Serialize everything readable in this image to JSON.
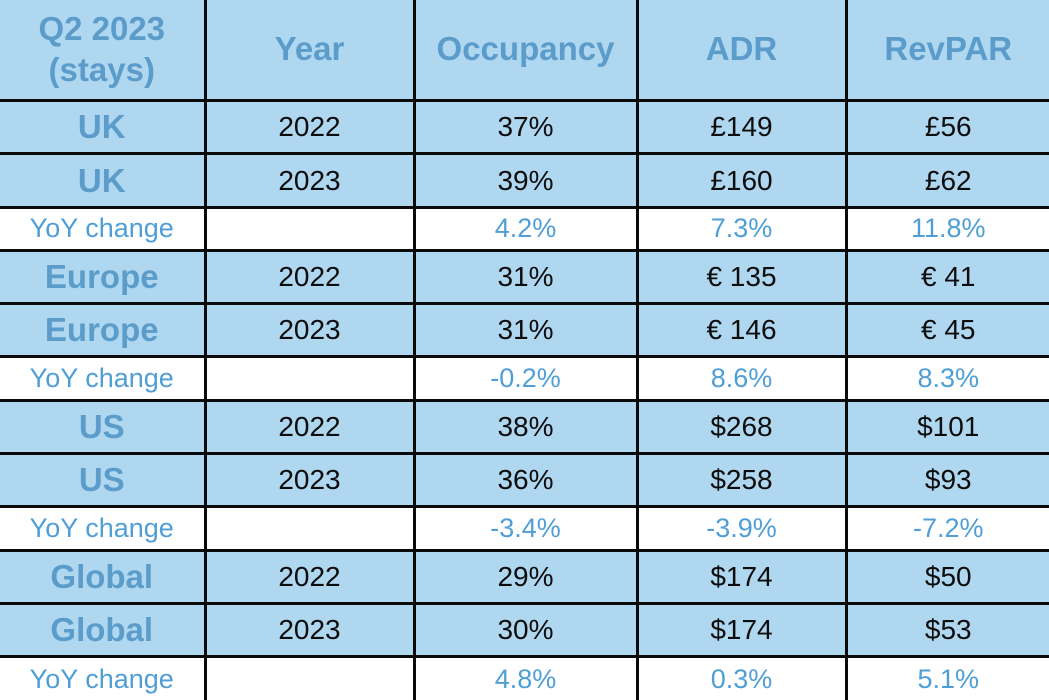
{
  "colors": {
    "cell_background": "#afd7f0",
    "yoy_row_background": "#ffffff",
    "heading_text": "#5b9cca",
    "yoy_text": "#4f9fd6",
    "value_text": "#0d0d0d",
    "grid_border": "#0a0a0a"
  },
  "chart_data": {
    "type": "table",
    "title": "Q2 2023 (stays)",
    "columns": [
      "Q2 2023 (stays)",
      "Year",
      "Occupancy",
      "ADR",
      "RevPAR"
    ],
    "rows": [
      [
        "UK",
        "2022",
        "37%",
        "£149",
        "£56"
      ],
      [
        "UK",
        "2023",
        "39%",
        "£160",
        "£62"
      ],
      [
        "YoY change",
        "",
        "4.2%",
        "7.3%",
        "11.8%"
      ],
      [
        "Europe",
        "2022",
        "31%",
        "€ 135",
        "€ 41"
      ],
      [
        "Europe",
        "2023",
        "31%",
        "€ 146",
        "€ 45"
      ],
      [
        "YoY change",
        "",
        "-0.2%",
        "8.6%",
        "8.3%"
      ],
      [
        "US",
        "2022",
        "38%",
        "$268",
        "$101"
      ],
      [
        "US",
        "2023",
        "36%",
        "$258",
        "$93"
      ],
      [
        "YoY change",
        "",
        "-3.4%",
        "-3.9%",
        "-7.2%"
      ],
      [
        "Global",
        "2022",
        "29%",
        "$174",
        "$50"
      ],
      [
        "Global",
        "2023",
        "30%",
        "$174",
        "$53"
      ],
      [
        "YoY change",
        "",
        "4.8%",
        "0.3%",
        "5.1%"
      ]
    ]
  }
}
